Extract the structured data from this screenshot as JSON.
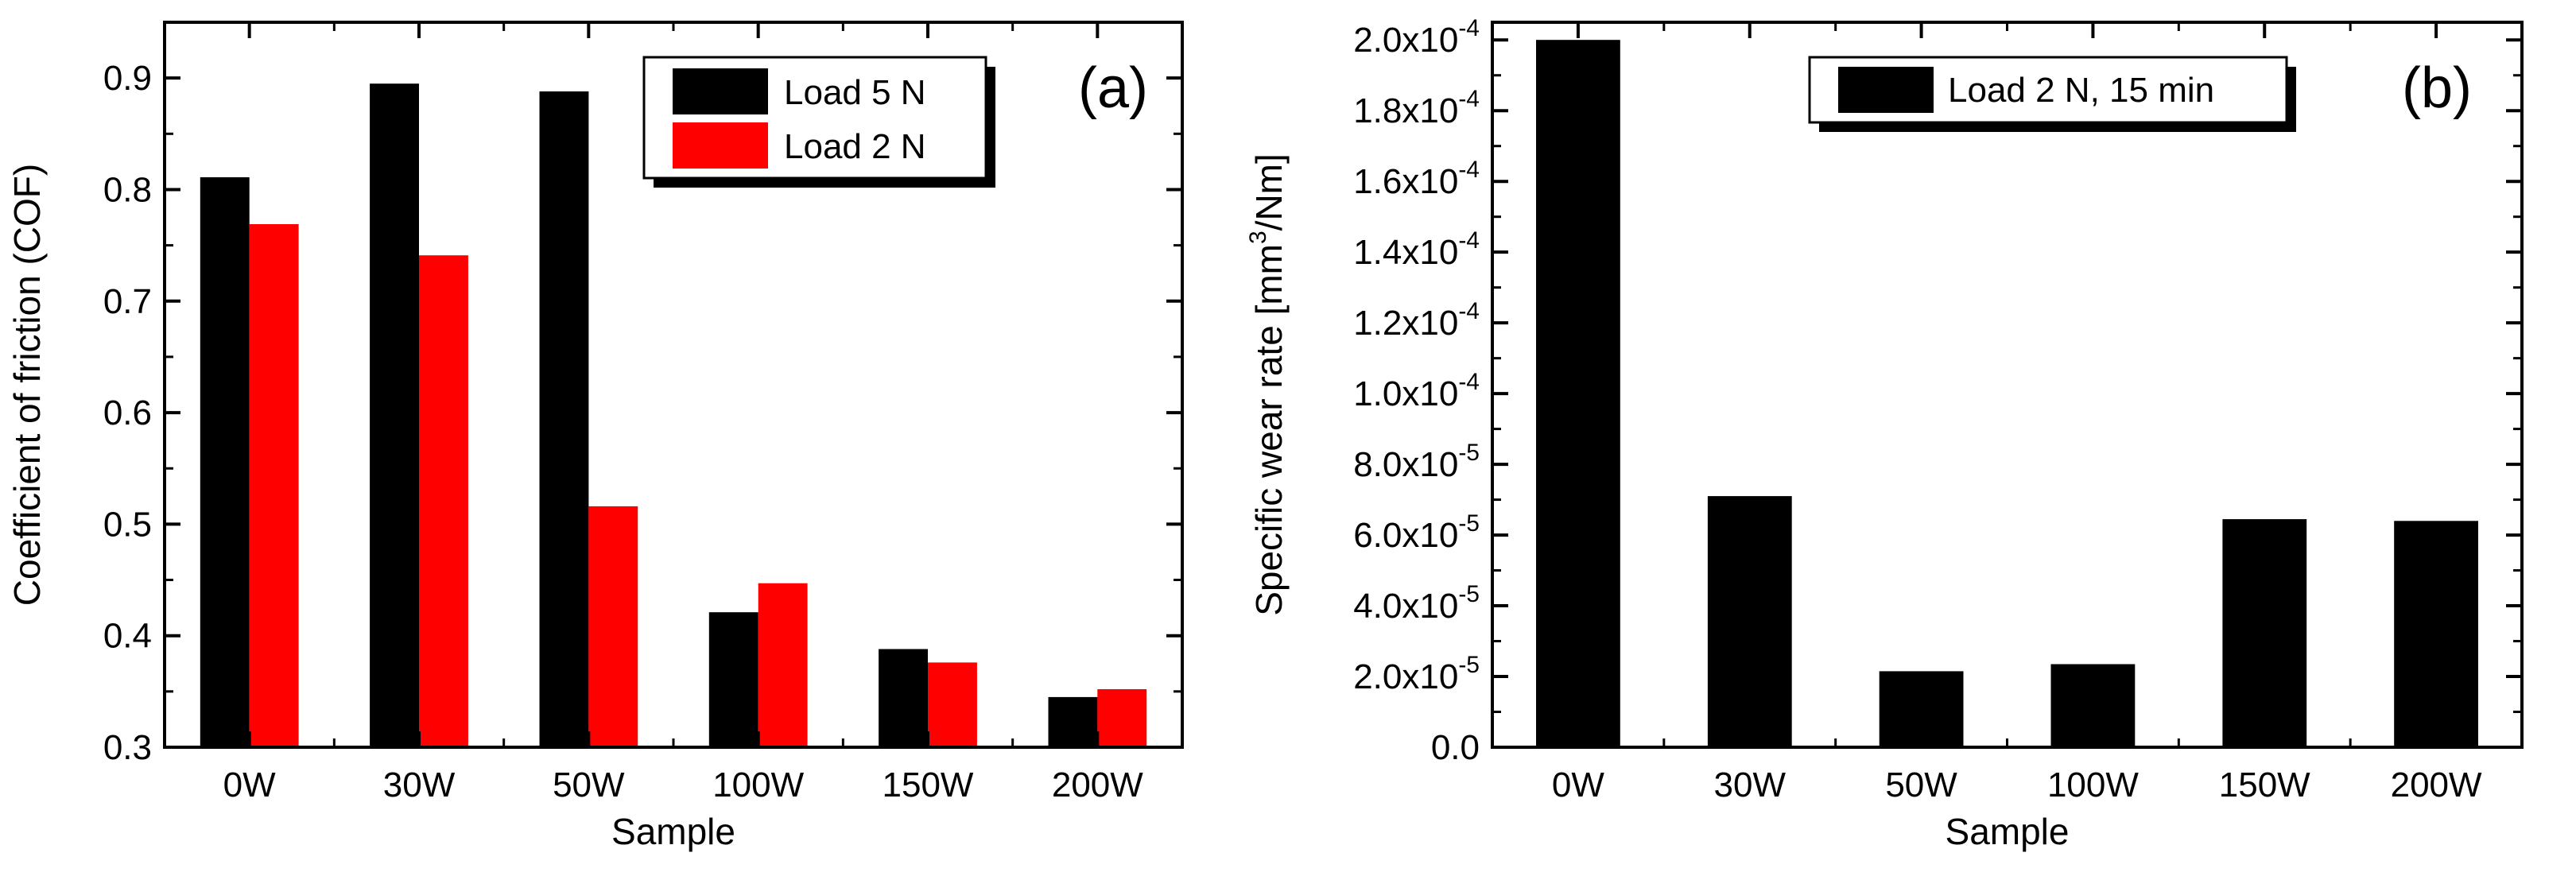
{
  "chart_data": [
    {
      "type": "bar",
      "panel_label": "(a)",
      "xlabel": "Sample",
      "ylabel": "Coefficient of friction (COF)",
      "ylim": [
        0.3,
        0.95
      ],
      "y_ticks": [
        0.3,
        0.4,
        0.5,
        0.6,
        0.7,
        0.8,
        0.9
      ],
      "y_tick_labels": [
        "0.3",
        "0.4",
        "0.5",
        "0.6",
        "0.7",
        "0.8",
        "0.9"
      ],
      "categories": [
        "0W",
        "30W",
        "50W",
        "100W",
        "150W",
        "200W"
      ],
      "series": [
        {
          "name": "Load 5 N",
          "color": "#000000",
          "values": [
            0.811,
            0.895,
            0.888,
            0.421,
            0.388,
            0.345
          ]
        },
        {
          "name": "Load 2 N",
          "color": "#ff0000",
          "values": [
            0.769,
            0.741,
            0.516,
            0.447,
            0.376,
            0.352
          ]
        }
      ],
      "legend": "top-right",
      "grid": false
    },
    {
      "type": "bar",
      "panel_label": "(b)",
      "xlabel": "Sample",
      "ylabel_main": "Specific wear rate [mm",
      "ylabel_sup": "3",
      "ylabel_tail": "/Nm]",
      "ylim": [
        0,
        0.000205
      ],
      "y_ticks": [
        0,
        2e-05,
        4e-05,
        6e-05,
        8e-05,
        0.0001,
        0.00012,
        0.00014,
        0.00016,
        0.00018,
        0.0002
      ],
      "y_tick_labels": [
        {
          "base": "0.0",
          "exp": ""
        },
        {
          "base": "2.0x10",
          "exp": "-5"
        },
        {
          "base": "4.0x10",
          "exp": "-5"
        },
        {
          "base": "6.0x10",
          "exp": "-5"
        },
        {
          "base": "8.0x10",
          "exp": "-5"
        },
        {
          "base": "1.0x10",
          "exp": "-4"
        },
        {
          "base": "1.2x10",
          "exp": "-4"
        },
        {
          "base": "1.4x10",
          "exp": "-4"
        },
        {
          "base": "1.6x10",
          "exp": "-4"
        },
        {
          "base": "1.8x10",
          "exp": "-4"
        },
        {
          "base": "2.0x10",
          "exp": "-4"
        }
      ],
      "categories": [
        "0W",
        "30W",
        "50W",
        "100W",
        "150W",
        "200W"
      ],
      "series": [
        {
          "name": "Load 2 N, 15 min",
          "color": "#000000",
          "values": [
            0.0002,
            7.1e-05,
            2.15e-05,
            2.35e-05,
            6.45e-05,
            6.4e-05
          ]
        }
      ],
      "legend": "top-right",
      "grid": false
    }
  ]
}
